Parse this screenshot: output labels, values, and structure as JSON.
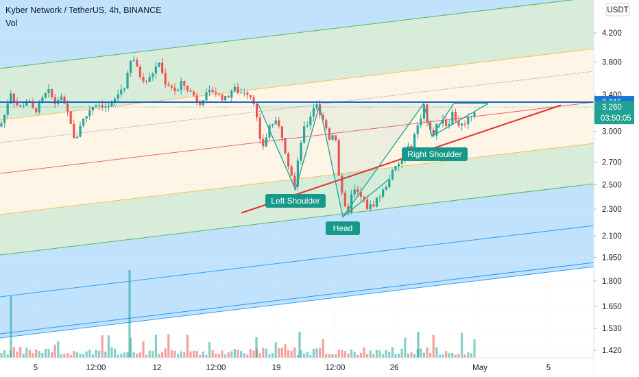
{
  "header": {
    "symbol": "Kyber Network / TetherUS, 4h, BINANCE",
    "indicator": "Vol"
  },
  "currency": "USDT",
  "chart_data": {
    "type": "candlestick",
    "title": "Kyber Network / TetherUS, 4h, BINANCE",
    "y_scale": "log",
    "ylim": [
      1.4,
      4.4
    ],
    "y_ticks": [
      "4.200",
      "3.800",
      "3.400",
      "3.000",
      "2.700",
      "2.500",
      "2.300",
      "2.100",
      "1.950",
      "1.800",
      "1.650",
      "1.530",
      "1.420"
    ],
    "x_ticks": [
      "5",
      "12:00",
      "12",
      "12:00",
      "19",
      "12:00",
      "26",
      "May",
      "5"
    ],
    "resistance_level": 3.315,
    "current_price": 3.26,
    "countdown": "03:50:05",
    "price_path": [
      [
        0,
        3.05
      ],
      [
        8,
        3.2
      ],
      [
        15,
        3.45
      ],
      [
        22,
        3.3
      ],
      [
        30,
        3.25
      ],
      [
        40,
        3.35
      ],
      [
        50,
        3.2
      ],
      [
        60,
        3.32
      ],
      [
        70,
        3.45
      ],
      [
        80,
        3.3
      ],
      [
        88,
        3.38
      ],
      [
        95,
        3.25
      ],
      [
        102,
        3.15
      ],
      [
        108,
        2.9
      ],
      [
        112,
        2.95
      ],
      [
        118,
        3.1
      ],
      [
        125,
        3.15
      ],
      [
        132,
        3.25
      ],
      [
        140,
        3.3
      ],
      [
        150,
        3.28
      ],
      [
        160,
        3.25
      ],
      [
        168,
        3.35
      ],
      [
        175,
        3.45
      ],
      [
        182,
        3.5
      ],
      [
        188,
        3.7
      ],
      [
        193,
        3.9
      ],
      [
        198,
        3.75
      ],
      [
        205,
        3.62
      ],
      [
        215,
        3.55
      ],
      [
        225,
        3.7
      ],
      [
        232,
        3.8
      ],
      [
        240,
        3.55
      ],
      [
        250,
        3.5
      ],
      [
        258,
        3.42
      ],
      [
        265,
        3.55
      ],
      [
        275,
        3.45
      ],
      [
        282,
        3.4
      ],
      [
        290,
        3.3
      ],
      [
        298,
        3.38
      ],
      [
        305,
        3.42
      ],
      [
        312,
        3.45
      ],
      [
        320,
        3.38
      ],
      [
        330,
        3.35
      ],
      [
        340,
        3.48
      ],
      [
        350,
        3.42
      ],
      [
        358,
        3.45
      ],
      [
        366,
        3.38
      ],
      [
        372,
        3.3
      ],
      [
        378,
        2.9
      ],
      [
        385,
        2.85
      ],
      [
        392,
        3.05
      ],
      [
        400,
        3.1
      ],
      [
        406,
        3.05
      ],
      [
        412,
        2.95
      ],
      [
        418,
        2.75
      ],
      [
        425,
        2.6
      ],
      [
        431,
        2.45
      ],
      [
        436,
        2.8
      ],
      [
        442,
        3.0
      ],
      [
        450,
        3.1
      ],
      [
        456,
        3.25
      ],
      [
        462,
        3.3
      ],
      [
        468,
        3.15
      ],
      [
        475,
        3.05
      ],
      [
        482,
        2.9
      ],
      [
        488,
        3.05
      ],
      [
        494,
        2.6
      ],
      [
        500,
        2.35
      ],
      [
        506,
        2.25
      ],
      [
        512,
        2.4
      ],
      [
        518,
        2.45
      ],
      [
        525,
        2.4
      ],
      [
        532,
        2.35
      ],
      [
        538,
        2.3
      ],
      [
        545,
        2.35
      ],
      [
        552,
        2.4
      ],
      [
        560,
        2.45
      ],
      [
        566,
        2.55
      ],
      [
        572,
        2.6
      ],
      [
        578,
        2.65
      ],
      [
        585,
        2.7
      ],
      [
        592,
        2.8
      ],
      [
        600,
        2.85
      ],
      [
        606,
        3.0
      ],
      [
        612,
        3.1
      ],
      [
        618,
        3.3
      ],
      [
        624,
        3.05
      ],
      [
        630,
        2.95
      ],
      [
        637,
        3.05
      ],
      [
        645,
        3.15
      ],
      [
        652,
        3.05
      ],
      [
        660,
        3.2
      ],
      [
        666,
        3.1
      ],
      [
        672,
        3.05
      ],
      [
        678,
        3.1
      ],
      [
        684,
        3.15
      ],
      [
        690,
        3.2
      ],
      [
        696,
        3.26
      ]
    ],
    "annotations": [
      "Left Shoulder",
      "Head",
      "Right Shoulder"
    ],
    "volume_series": "Vol"
  },
  "colors": {
    "up": "#26a69a",
    "down": "#ef5350",
    "resistance": "#1565c0",
    "neckline": "#e53935",
    "label_bg": "#17998a",
    "price_badge": "#1976d2",
    "current_badge": "#20a192"
  }
}
